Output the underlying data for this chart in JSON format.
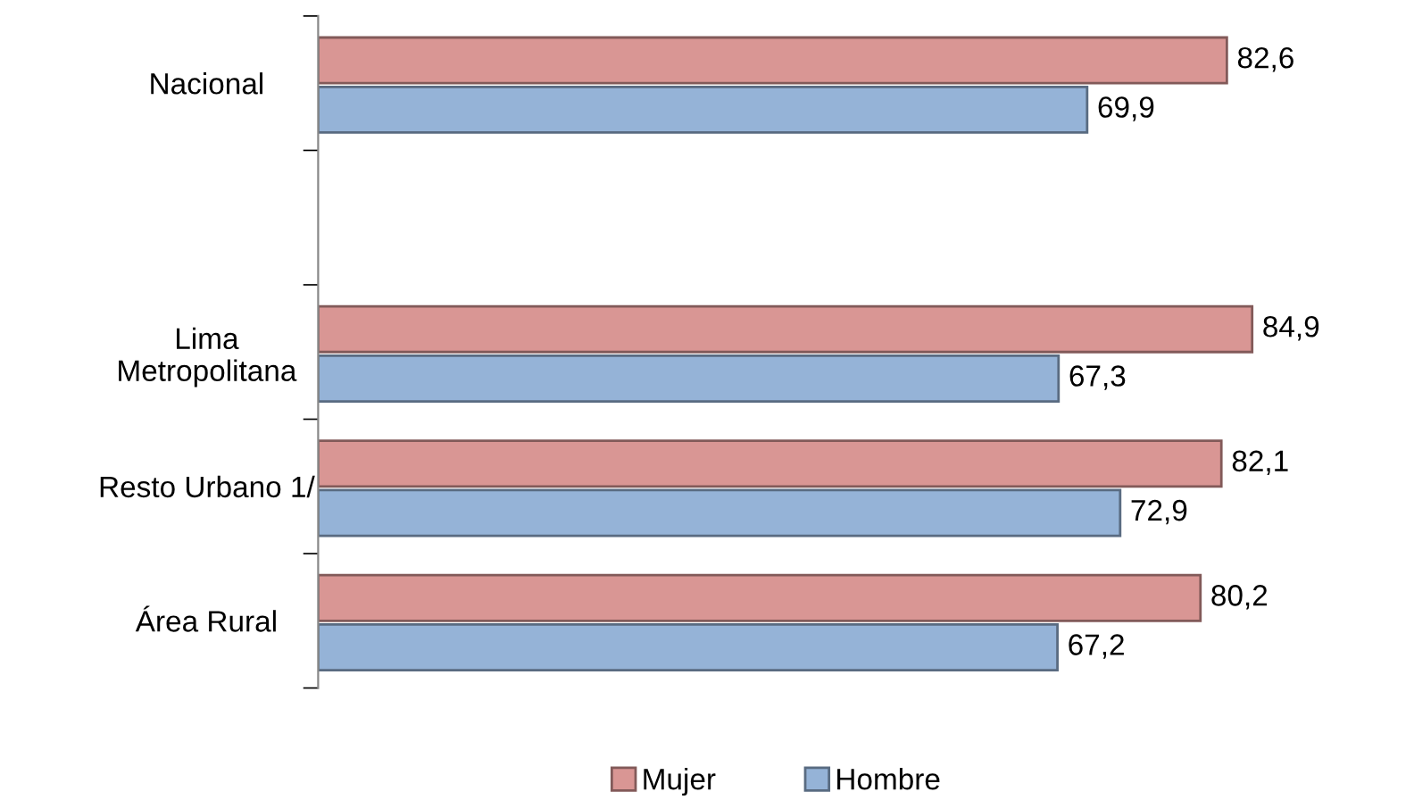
{
  "chart_data": {
    "type": "bar",
    "orientation": "horizontal",
    "categories": [
      "Nacional",
      null,
      "Lima\nMetropolitana",
      "Resto Urbano 1/",
      "Área Rural"
    ],
    "series": [
      {
        "name": "Mujer",
        "color": "#d99694",
        "values": [
          82.6,
          null,
          84.9,
          82.1,
          80.2
        ],
        "value_labels": [
          "82,6",
          null,
          "84,9",
          "82,1",
          "80,2"
        ]
      },
      {
        "name": "Hombre",
        "color": "#95b3d7",
        "values": [
          69.9,
          null,
          67.3,
          72.9,
          67.2
        ],
        "value_labels": [
          "69,9",
          null,
          "67,3",
          "72,9",
          "67,2"
        ]
      }
    ],
    "legend": "bottom",
    "grid": false,
    "tick_labels": "y"
  }
}
